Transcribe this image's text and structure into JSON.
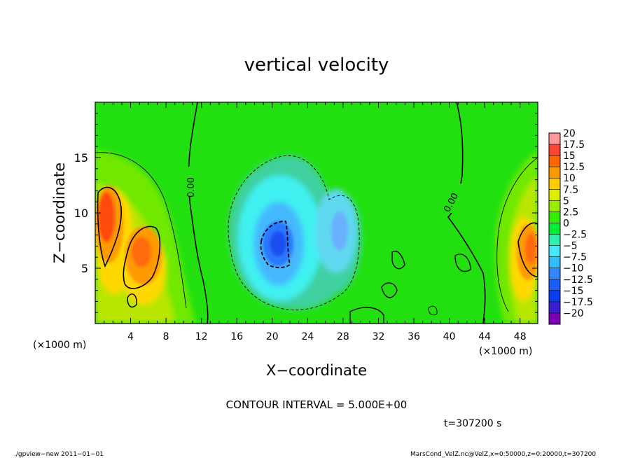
{
  "chart_data": {
    "type": "heatmap",
    "title": "vertical velocity",
    "xlabel": "X−coordinate",
    "ylabel": "Z−coordinate",
    "x_unit_left": "(×1000 m)",
    "x_unit_right": "(×1000 m)",
    "xlim": [
      0,
      50
    ],
    "ylim": [
      0,
      20
    ],
    "x_ticks": [
      4,
      8,
      12,
      16,
      20,
      24,
      28,
      32,
      36,
      40,
      44,
      48
    ],
    "x_tick_labels": [
      "4",
      "8",
      "12",
      "16",
      "20",
      "24",
      "28",
      "32",
      "36",
      "40",
      "44",
      "48"
    ],
    "y_ticks": [
      5,
      10,
      15
    ],
    "y_tick_labels": [
      "5",
      "10",
      "15"
    ],
    "colorbar": {
      "levels": [
        -20,
        -17.5,
        -15,
        -12.5,
        -10,
        -7.5,
        -5,
        -2.5,
        0,
        2.5,
        5,
        7.5,
        10,
        12.5,
        15,
        17.5,
        20
      ],
      "labels": [
        "20",
        "17.5",
        "15",
        "12.5",
        "10",
        "7.5",
        "5",
        "2.5",
        "0",
        "−2.5",
        "−5",
        "−7.5",
        "−10",
        "−12.5",
        "−15",
        "−17.5",
        "−20"
      ],
      "colors": [
        "#7f00b3",
        "#3a1fd0",
        "#0a3ef0",
        "#1a5ff8",
        "#3388ff",
        "#33bbff",
        "#44e8ff",
        "#30f0b0",
        "#00ee33",
        "#33ee00",
        "#99ee00",
        "#ddee00",
        "#ffcc00",
        "#ff9900",
        "#ff6600",
        "#ff4433",
        "#ff9999"
      ]
    },
    "contour_interval_text": "CONTOUR INTERVAL = 5.000E+00",
    "contour_labels": [
      "0.00",
      "0.00"
    ],
    "features": [
      {
        "kind": "updraft",
        "x": 1.2,
        "z": 10.5,
        "w": 14
      },
      {
        "kind": "updraft",
        "x": 5.5,
        "z": 7.0,
        "w": 12
      },
      {
        "kind": "updraft",
        "x": 49.0,
        "z": 7.0,
        "w": 12
      },
      {
        "kind": "downdraft",
        "x": 20.5,
        "z": 7.5,
        "w": -12
      },
      {
        "kind": "downdraft",
        "x": 27.0,
        "z": 8.5,
        "w": -6
      }
    ],
    "time_label": "t=307200 s"
  },
  "footer": {
    "left": "./gpview−new   2011−01−01",
    "right": "MarsCond_VelZ.nc@VelZ,x=0:50000,z=0:20000,t=307200"
  }
}
